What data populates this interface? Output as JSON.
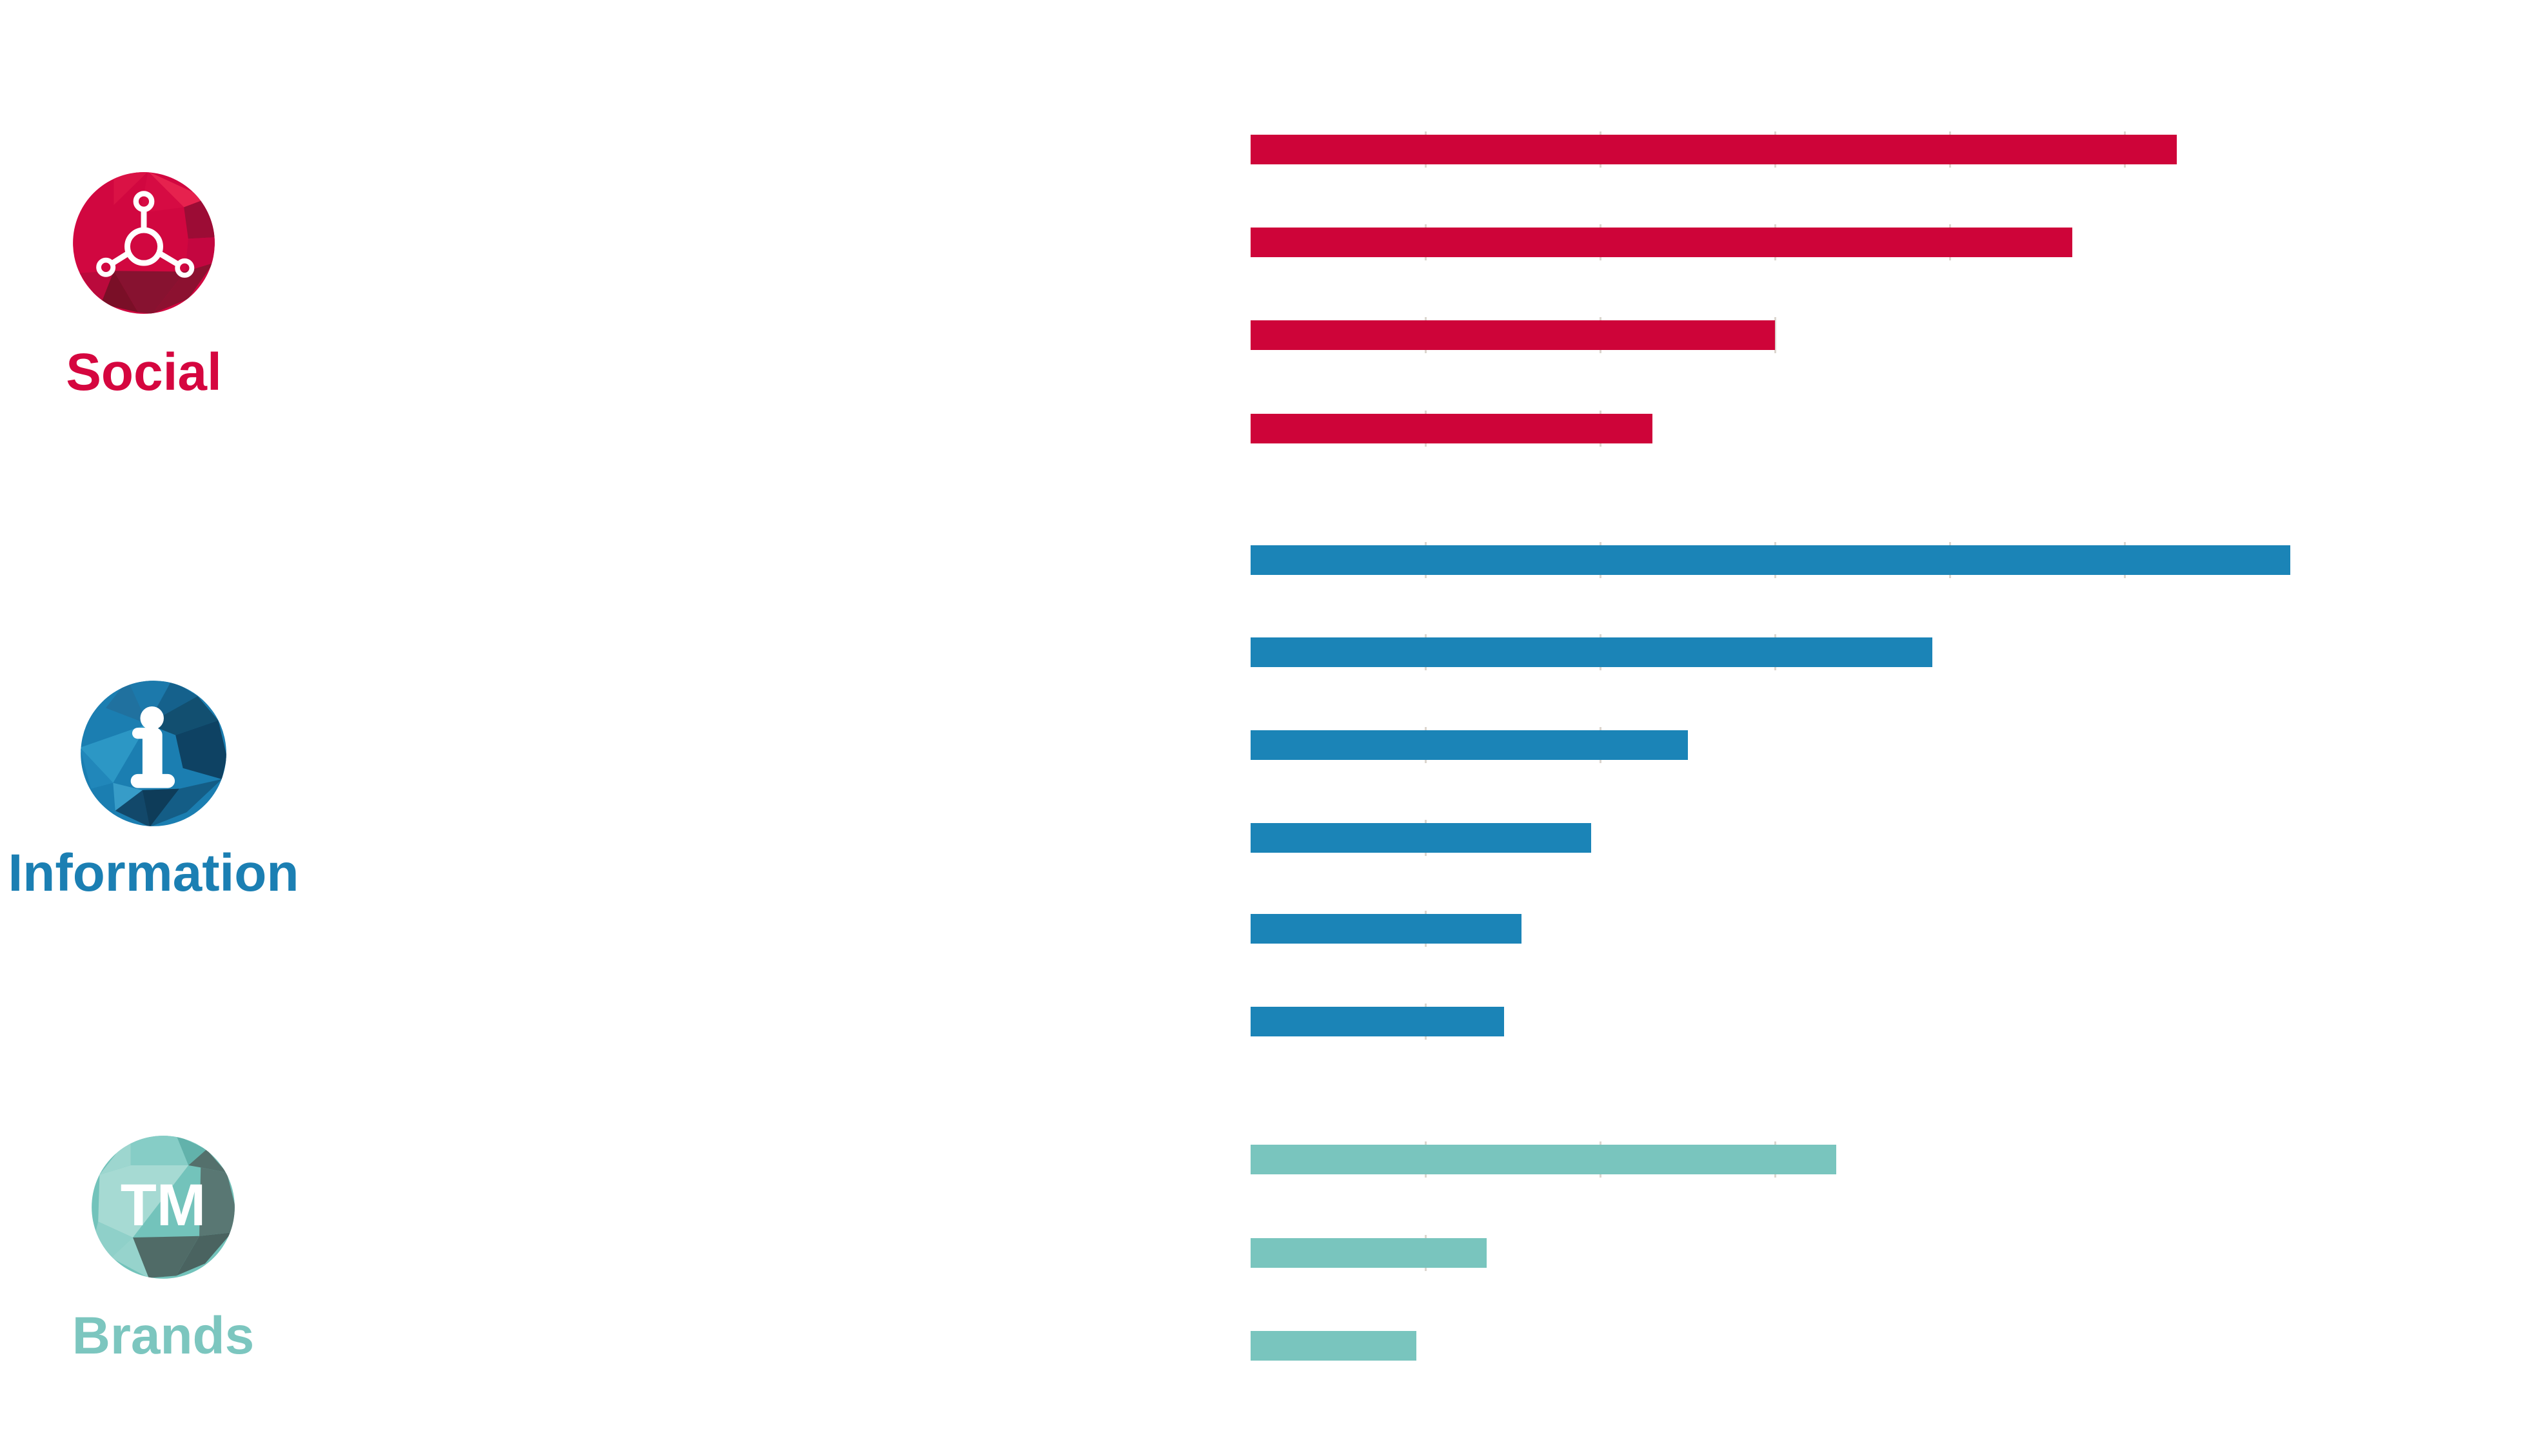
{
  "page": {
    "background": "#FFFFFF"
  },
  "legend": {
    "categories": [
      {
        "label": "Social",
        "label_color": "#D5063F",
        "icon": "network-nodes-icon",
        "icon_base_color": "#D10740"
      },
      {
        "label": "Information",
        "label_color": "#1B7FB3",
        "icon": "info-i-icon",
        "icon_base_color": "#1B7EB1"
      },
      {
        "label": "Brands",
        "label_color": "#7CC6BF",
        "icon": "trademark-icon",
        "icon_base_color": "#73C3BB",
        "icon_text": "TM"
      }
    ]
  },
  "chart_data": {
    "type": "bar",
    "orientation": "horizontal",
    "title": "",
    "xlabel": "",
    "ylabel": "",
    "value_axis": {
      "min": 0,
      "max_visible": 66,
      "gridline_spacing": 10,
      "gridlines_visible": "faint ticks at bar edges only",
      "tick_labels_visible": false
    },
    "numeric_data_labels_visible": false,
    "groups": [
      {
        "name": "Social",
        "color": "#CE0439",
        "values": [
          53,
          47,
          30,
          23
        ]
      },
      {
        "name": "Information",
        "color": "#1B84B7",
        "values": [
          59.5,
          39,
          25,
          19.5,
          15.5,
          14.5
        ]
      },
      {
        "name": "Brands",
        "color": "#79C5BE",
        "values": [
          33.5,
          13.5,
          9.5
        ]
      }
    ],
    "note": "No numeric labels or axis text are shown in the image; values estimated from faint gridlines (1 gridline = 10 units)."
  },
  "gridline_color": "#DCD6CF"
}
